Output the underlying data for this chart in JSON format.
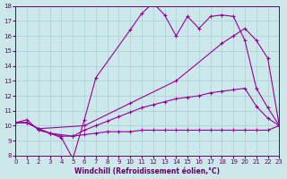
{
  "xlabel": "Windchill (Refroidissement éolien,°C)",
  "xlim": [
    0,
    23
  ],
  "ylim": [
    8,
    18
  ],
  "xticks": [
    0,
    1,
    2,
    3,
    4,
    5,
    6,
    7,
    8,
    9,
    10,
    11,
    12,
    13,
    14,
    15,
    16,
    17,
    18,
    19,
    20,
    21,
    22,
    23
  ],
  "yticks": [
    8,
    9,
    10,
    11,
    12,
    13,
    14,
    15,
    16,
    17,
    18
  ],
  "background_color": "#cce8ea",
  "grid_color": "#a8d0d4",
  "line_color": "#990099",
  "curves": [
    {
      "x": [
        0,
        1,
        2,
        3,
        4,
        5,
        6,
        7,
        10,
        11,
        12,
        13,
        14,
        15,
        16,
        17,
        18,
        19,
        20,
        21,
        22,
        23
      ],
      "y": [
        10.2,
        10.4,
        9.7,
        9.5,
        9.2,
        7.8,
        10.4,
        13.2,
        16.4,
        17.5,
        18.2,
        17.4,
        16.0,
        17.3,
        16.5,
        17.3,
        17.4,
        17.3,
        15.7,
        12.5,
        11.2,
        10.0
      ]
    },
    {
      "x": [
        0,
        1,
        2,
        6,
        10,
        14,
        18,
        19,
        20,
        21,
        22,
        23
      ],
      "y": [
        10.2,
        10.2,
        9.8,
        10.0,
        11.5,
        13.0,
        15.5,
        16.0,
        16.5,
        15.7,
        14.5,
        10.0
      ]
    },
    {
      "x": [
        0,
        1,
        2,
        3,
        5,
        6,
        7,
        8,
        9,
        10,
        11,
        12,
        13,
        14,
        15,
        16,
        17,
        18,
        19,
        20,
        21,
        22,
        23
      ],
      "y": [
        10.2,
        10.2,
        9.8,
        9.5,
        9.3,
        9.7,
        10.0,
        10.3,
        10.6,
        10.9,
        11.2,
        11.4,
        11.6,
        11.8,
        11.9,
        12.0,
        12.2,
        12.3,
        12.4,
        12.5,
        11.3,
        10.5,
        10.0
      ]
    },
    {
      "x": [
        0,
        1,
        2,
        3,
        4,
        5,
        6,
        7,
        8,
        9,
        10,
        11,
        12,
        13,
        14,
        15,
        16,
        17,
        18,
        19,
        20,
        21,
        22,
        23
      ],
      "y": [
        10.2,
        10.2,
        9.8,
        9.5,
        9.3,
        9.3,
        9.4,
        9.5,
        9.6,
        9.6,
        9.6,
        9.7,
        9.7,
        9.7,
        9.7,
        9.7,
        9.7,
        9.7,
        9.7,
        9.7,
        9.7,
        9.7,
        9.7,
        10.0
      ]
    }
  ]
}
